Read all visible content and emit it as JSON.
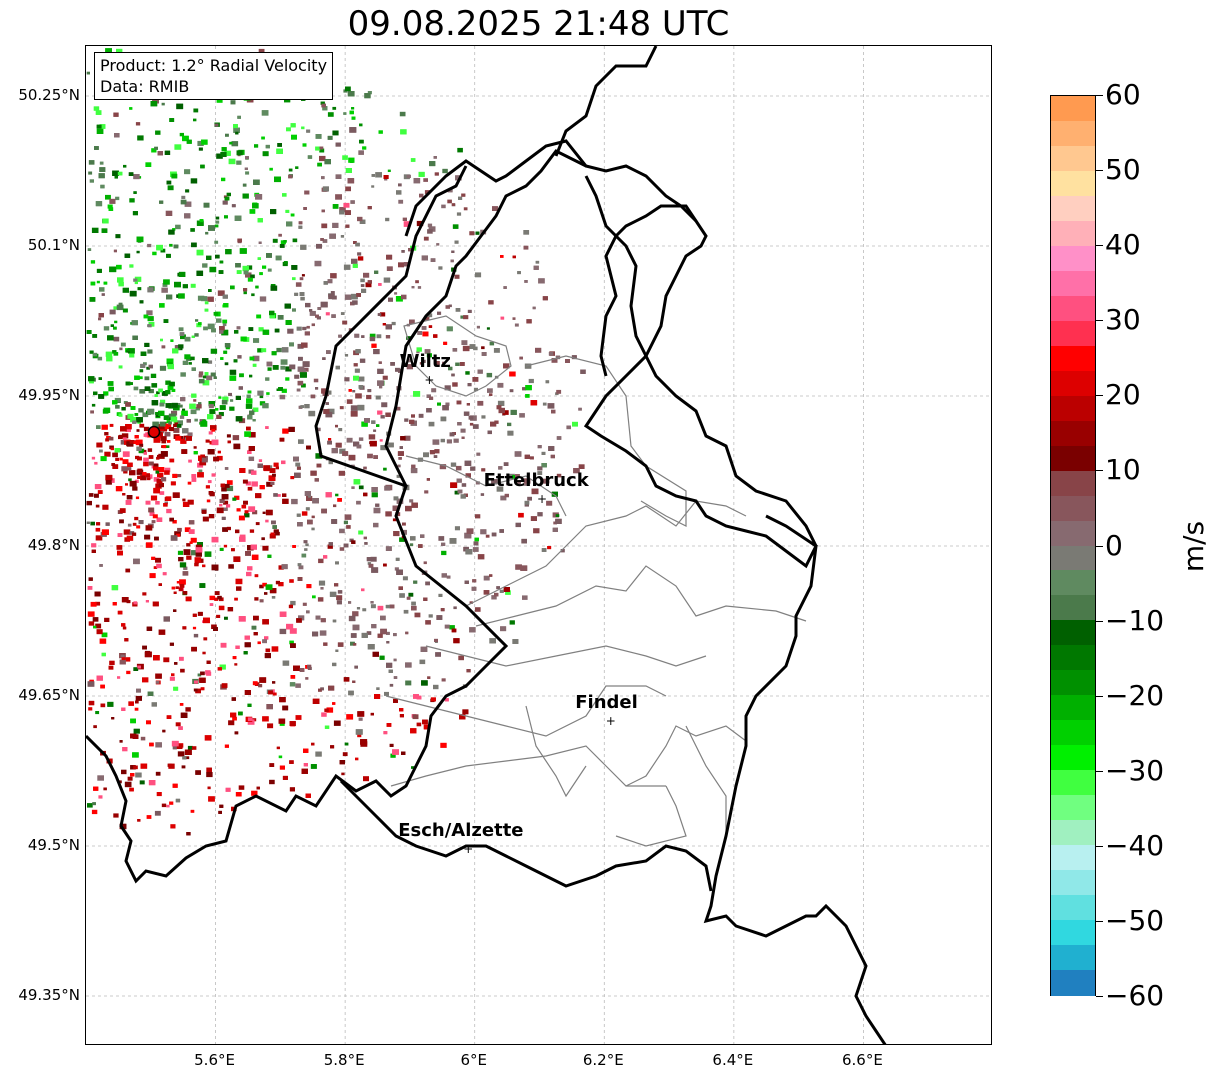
{
  "title": "09.08.2025 21:48 UTC",
  "info": {
    "product": "Product: 1.2° Radial Velocity",
    "data": "Data: RMIB"
  },
  "map": {
    "lon_range": [
      5.4,
      6.8
    ],
    "lat_range": [
      49.3,
      50.3
    ],
    "lat_ticks": [
      "50.25°N",
      "50.1°N",
      "49.95°N",
      "49.8°N",
      "49.65°N",
      "49.5°N",
      "49.35°N"
    ],
    "lon_ticks": [
      "5.6°E",
      "5.8°E",
      "6°E",
      "6.2°E",
      "6.4°E",
      "6.6°E"
    ],
    "radar_site": {
      "lon": 5.505,
      "lat": 49.914
    },
    "cities": [
      {
        "name": "Wiltz",
        "lon": 5.93,
        "lat": 49.966
      },
      {
        "name": "Ettelbruck",
        "lon": 6.104,
        "lat": 49.847
      },
      {
        "name": "Findel",
        "lon": 6.21,
        "lat": 49.625
      },
      {
        "name": "Esch/Alzette",
        "lon": 5.99,
        "lat": 49.497
      }
    ]
  },
  "colorbar": {
    "label": "m/s",
    "ticks": [
      "60",
      "50",
      "40",
      "30",
      "20",
      "10",
      "0",
      "−10",
      "−20",
      "−30",
      "−40",
      "−50",
      "−60"
    ],
    "colors": [
      "#ff9a50",
      "#ffb070",
      "#ffc890",
      "#ffe1a0",
      "#ffcfc0",
      "#ffb0b8",
      "#ff90c8",
      "#ff70a8",
      "#ff5080",
      "#ff3050",
      "#ff0000",
      "#dd0000",
      "#bb0000",
      "#990000",
      "#7a0000",
      "#884448",
      "#88565c",
      "#876a70",
      "#7a7a74",
      "#5f8a60",
      "#4b7a4b",
      "#006000",
      "#007800",
      "#009000",
      "#00b000",
      "#00d000",
      "#00f000",
      "#40ff40",
      "#70ff80",
      "#a0f0c0",
      "#b8f0f0",
      "#90e8e8",
      "#60e0e0",
      "#30d8e0",
      "#20b0d0",
      "#2080c0"
    ]
  }
}
